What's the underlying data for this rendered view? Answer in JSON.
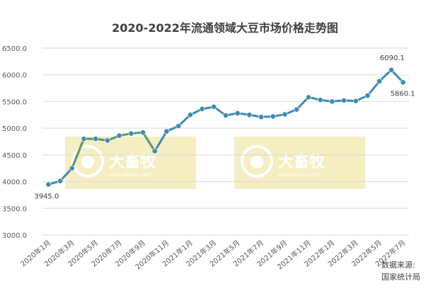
{
  "colors": {
    "line": "#3d8bb5",
    "line_highlight": "#5c9a6a",
    "marker": "#3d8bb5",
    "grid": "#d9d9d9",
    "watermark_bg": "#f5eec2"
  },
  "watermark": {
    "brand": "大畜牧",
    "url": "www.dxumu.com"
  },
  "source": {
    "line1": "数据来源:",
    "line2": "国家统计局"
  },
  "chart_data": {
    "type": "line",
    "title": "2020-2022年流通领域大豆市场价格走势图",
    "xlabel": "",
    "ylabel": "",
    "ylim": [
      3000,
      6500
    ],
    "yticks": [
      "6500.0",
      "6000.0",
      "5500.0",
      "5000.0",
      "4500.0",
      "4000.0",
      "3500.0",
      "3000.0"
    ],
    "grid": true,
    "xtick_labels": [
      "2020年1月",
      "2020年3月",
      "2020年5月",
      "2020年7月",
      "2020年9月",
      "2020年11月",
      "2021年1月",
      "2021年3月",
      "2021年5月",
      "2021年7月",
      "2021年9月",
      "2021年11月",
      "2022年1月",
      "2022年3月",
      "2022年5月",
      "2022年7月"
    ],
    "points": [
      3945,
      4010,
      4250,
      4800,
      4800,
      4770,
      4860,
      4900,
      4920,
      4570,
      4940,
      5040,
      5250,
      5360,
      5400,
      5240,
      5280,
      5250,
      5210,
      5220,
      5260,
      5350,
      5580,
      5530,
      5500,
      5520,
      5510,
      5610,
      5880,
      6090.1,
      5860.1
    ],
    "highlight_segment": [
      2,
      9
    ],
    "data_labels": [
      {
        "index": 0,
        "text": "3945.0"
      },
      {
        "index": 29,
        "text": "6090.1"
      },
      {
        "index": 30,
        "text": "5860.1"
      }
    ]
  }
}
